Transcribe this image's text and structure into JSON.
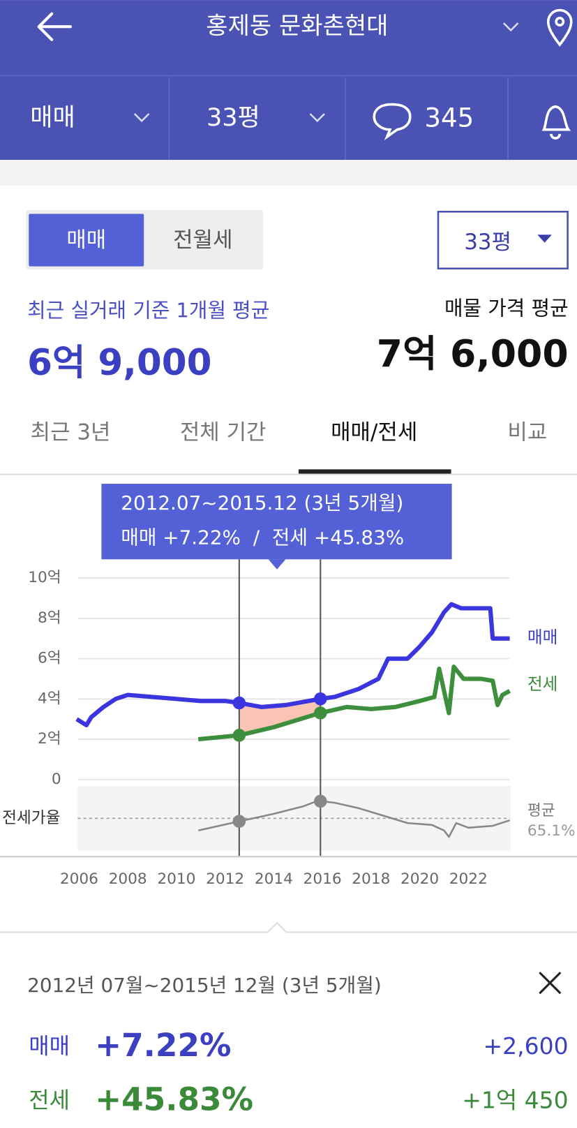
{
  "header": {
    "title": "홍제동 문화촌현대"
  },
  "subnav": {
    "deal": "매매",
    "size": "33평",
    "comments": 345
  },
  "toggle": [
    "매매",
    "전월세"
  ],
  "size_select": "33평",
  "summary": {
    "recent_label": "최근 실거래 기준 1개월 평균",
    "recent_price": "6억 9,000",
    "listing_label": "매물 가격 평균",
    "listing_price": "7억 6,000"
  },
  "period_tabs": [
    "최근 3년",
    "전체 기간",
    "매매/전세",
    "비교"
  ],
  "chart_data": {
    "type": "line",
    "xlim": [
      2005.9,
      2023.7
    ],
    "xticks": [
      2006,
      2008,
      2010,
      2012,
      2014,
      2016,
      2018,
      2020,
      2022
    ],
    "ylim": [
      0,
      10
    ],
    "yticks": [
      0,
      {
        "value": 2,
        "label": "2억"
      },
      {
        "value": 4,
        "label": "4억"
      },
      {
        "value": 6,
        "label": "6억"
      },
      {
        "value": 8,
        "label": "8억"
      },
      {
        "value": 10,
        "label": "10억"
      }
    ],
    "y2lim": [
      30,
      100
    ],
    "grid": true,
    "series": [
      {
        "name": "매매",
        "color": "#3b35e0",
        "x": [
          2005.9,
          2006.3,
          2006.5,
          2007.0,
          2007.5,
          2008.0,
          2009.0,
          2010.0,
          2011.0,
          2012.0,
          2012.6,
          2013.5,
          2014.5,
          2015.9,
          2016.5,
          2017.5,
          2018.3,
          2018.7,
          2019.5,
          2020.0,
          2020.5,
          2021.0,
          2021.3,
          2021.7,
          2022.9,
          2023.0,
          2023.7
        ],
        "values": [
          3.0,
          2.7,
          3.1,
          3.6,
          4.0,
          4.2,
          4.1,
          4.0,
          3.9,
          3.9,
          3.8,
          3.6,
          3.7,
          4.0,
          4.1,
          4.5,
          5.0,
          6.0,
          6.0,
          6.6,
          7.3,
          8.3,
          8.7,
          8.5,
          8.5,
          7.0,
          7.0
        ]
      },
      {
        "name": "전세",
        "color": "#3d8f3d",
        "x": [
          2010.9,
          2012.6,
          2014.0,
          2015.9,
          2017.0,
          2018.0,
          2019.0,
          2020.0,
          2020.6,
          2020.8,
          2021.2,
          2021.4,
          2021.8,
          2022.5,
          2023.0,
          2023.2,
          2023.4,
          2023.7
        ],
        "values": [
          2.0,
          2.2,
          2.6,
          3.3,
          3.6,
          3.5,
          3.6,
          3.9,
          4.1,
          5.5,
          3.3,
          5.6,
          5.0,
          5.0,
          4.9,
          3.7,
          4.2,
          4.4
        ]
      },
      {
        "name": "전세가율",
        "color": "#888888",
        "axis": "y2",
        "x": [
          2010.9,
          2012.6,
          2014.0,
          2015.2,
          2015.8,
          2016.5,
          2017.5,
          2018.5,
          2019.5,
          2020.5,
          2021.0,
          2021.2,
          2021.5,
          2022.0,
          2023.0,
          2023.7
        ],
        "values": [
          52,
          62,
          70,
          78,
          84,
          82,
          76,
          68,
          60,
          58,
          52,
          45,
          60,
          55,
          57,
          63
        ]
      }
    ],
    "average_line": {
      "title": "평균",
      "value": 65.1,
      "label": "65.1%"
    },
    "selection": {
      "x": [
        2012.58,
        2015.92
      ],
      "tooltip": [
        "2012.07~2015.12 (3년 5개월)",
        "매매 +7.22%  /  전세 +45.83%"
      ]
    }
  },
  "detail": {
    "range": "2012년 07월~2015년 12월 (3년 5개월)",
    "rows": [
      {
        "name": "매매",
        "rate": "+7.22%",
        "change": "+2,600"
      },
      {
        "name": "전세",
        "rate": "+45.83%",
        "change": "+1억 450"
      }
    ]
  }
}
